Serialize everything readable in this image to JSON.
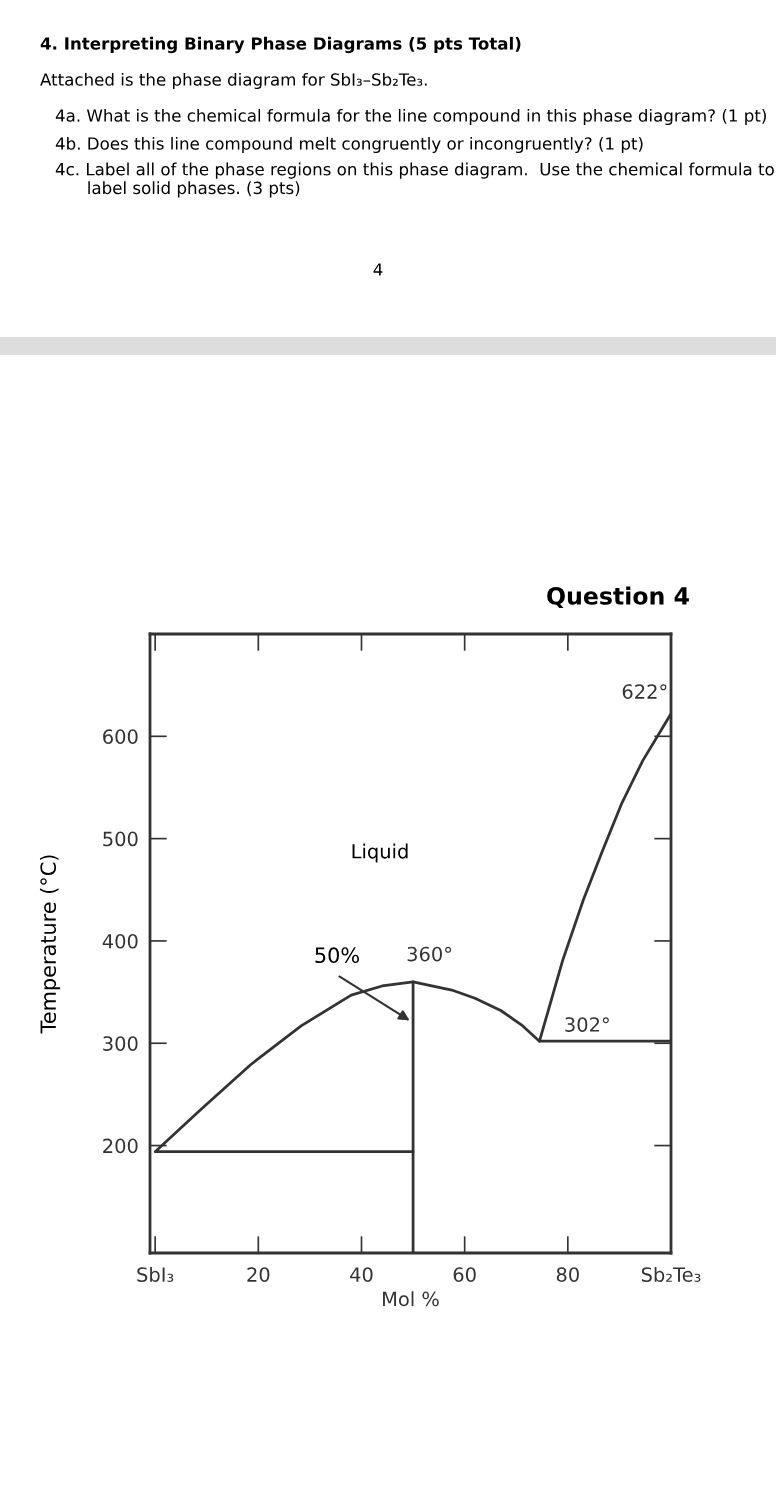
{
  "chart_data": {
    "type": "line",
    "title": "Question 4",
    "xlabel": "Mol %",
    "ylabel": "Temperature (°C)",
    "xlim": [
      -1,
      100
    ],
    "ylim": [
      95,
      700
    ],
    "xticks": [
      {
        "value": 0,
        "label": "SbI₃"
      },
      20,
      40,
      60,
      80,
      {
        "value": 100,
        "label": "Sb₂Te₃"
      }
    ],
    "yticks": [
      200,
      300,
      400,
      500,
      600
    ],
    "grid": false,
    "marker": "none",
    "line_style": "solid",
    "series": [
      {
        "color": "#333333",
        "x": [
          50,
          0,
          8.8,
          18.5,
          28.3,
          38,
          44,
          50,
          57.5,
          62,
          67,
          71,
          74.5
        ],
        "values": [
          194,
          194,
          235,
          279,
          317,
          347,
          356,
          360,
          352,
          344,
          332,
          318,
          302
        ]
      },
      {
        "color": "#333333",
        "x": [
          100,
          74.5,
          79,
          83,
          86.7,
          90.5,
          94.5,
          100
        ],
        "values": [
          302,
          302,
          381,
          440,
          488,
          535,
          576,
          622
        ]
      },
      {
        "color": "#333333",
        "x": [
          50,
          50
        ],
        "values": [
          95,
          360
        ]
      }
    ],
    "annotations": [
      "4. Interpreting Binary Phase Diagrams (5 pts Total)",
      "Attached is the phase diagram for SbI₃–Sb₂Te₃.",
      "4a. What is the chemical formula for the line compound in this phase diagram? (1 pt)",
      "4b. Does this line compound melt congruently or incongruently? (1 pt)",
      "4c. Label all of the phase regions on this phase diagram.  Use the chemical formula to\n      label solid phases. (3 pts)",
      "4",
      "Liquid",
      "50%",
      {
        "text": "360°",
        "x": 50,
        "y": 360
      },
      {
        "text": "302°",
        "x": 80,
        "y": 302
      },
      {
        "text": "622°",
        "x": 100,
        "y": 622
      }
    ]
  }
}
